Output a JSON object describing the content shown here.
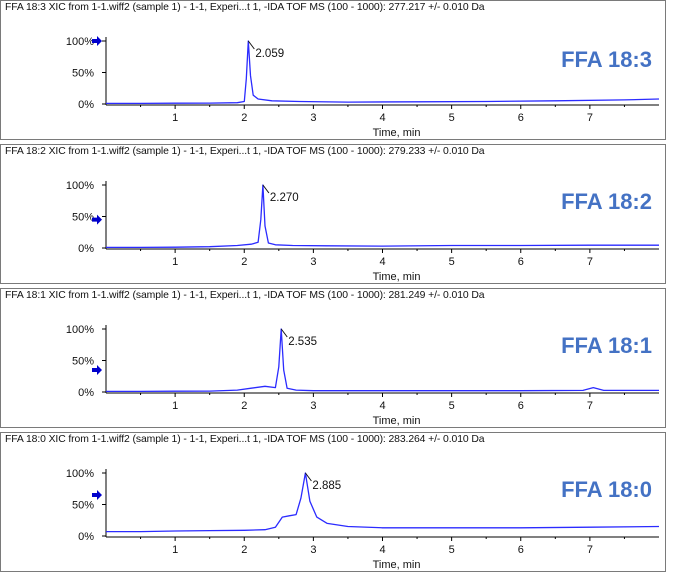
{
  "colors": {
    "trace": "#2b2bff",
    "label": "#4472c4",
    "axis": "#000000",
    "marker": "#0000cc"
  },
  "chart_data": [
    {
      "type": "line",
      "title": "FFA 18:3 XIC from 1-1.wiff2 (sample 1) - 1-1, Experi...t 1, -IDA TOF MS (100 - 1000): 277.217 +/- 0.010 Da",
      "label": "FFA 18:3",
      "xlabel": "Time, min",
      "ylabel": "",
      "xlim": [
        0,
        8.0
      ],
      "ylim": [
        0,
        100
      ],
      "x_ticks": [
        "1",
        "2",
        "3",
        "4",
        "5",
        "6",
        "7"
      ],
      "y_ticks": [
        "0%",
        "50%",
        "100%"
      ],
      "peak_label": "2.059",
      "peak_x": 2.059,
      "peak_y": 100,
      "marker_level": 100,
      "series": [
        {
          "x": [
            0.0,
            0.5,
            1.0,
            1.5,
            1.9,
            2.0,
            2.03,
            2.059,
            2.09,
            2.13,
            2.2,
            2.4,
            2.8,
            3.5,
            4.5,
            5.5,
            6.5,
            7.5,
            8.0
          ],
          "y": [
            1,
            1,
            1.2,
            1.5,
            2,
            4,
            40,
            100,
            45,
            14,
            8,
            5,
            4,
            3,
            3.5,
            4,
            5,
            6.5,
            8
          ]
        }
      ]
    },
    {
      "type": "line",
      "title": "FFA 18:2 XIC from 1-1.wiff2 (sample 1) - 1-1, Experi...t 1, -IDA TOF MS (100 - 1000): 279.233 +/- 0.010 Da",
      "label": "FFA 18:2",
      "xlabel": "Time, min",
      "ylabel": "",
      "xlim": [
        0,
        8.0
      ],
      "ylim": [
        0,
        100
      ],
      "x_ticks": [
        "1",
        "2",
        "3",
        "4",
        "5",
        "6",
        "7"
      ],
      "y_ticks": [
        "0%",
        "50%",
        "100%"
      ],
      "peak_label": "2.270",
      "peak_x": 2.27,
      "peak_y": 100,
      "marker_level": 45,
      "series": [
        {
          "x": [
            0.0,
            0.5,
            1.0,
            1.5,
            1.9,
            2.1,
            2.2,
            2.24,
            2.27,
            2.3,
            2.35,
            2.45,
            2.7,
            3.2,
            4.0,
            5.0,
            6.0,
            7.0,
            8.0
          ],
          "y": [
            1,
            1,
            1.2,
            2,
            4,
            6,
            9,
            45,
            100,
            35,
            8,
            5,
            4,
            3.5,
            3,
            4,
            4,
            4.5,
            4.5
          ]
        }
      ]
    },
    {
      "type": "line",
      "title": "FFA 18:1 XIC from 1-1.wiff2 (sample 1) - 1-1, Experi...t 1, -IDA TOF MS (100 - 1000): 281.249 +/- 0.010 Da",
      "label": "FFA 18:1",
      "xlabel": "Time, min",
      "ylabel": "",
      "xlim": [
        0,
        8.0
      ],
      "ylim": [
        0,
        100
      ],
      "x_ticks": [
        "1",
        "2",
        "3",
        "4",
        "5",
        "6",
        "7"
      ],
      "y_ticks": [
        "0%",
        "50%",
        "100%"
      ],
      "peak_label": "2.535",
      "peak_x": 2.535,
      "peak_y": 100,
      "marker_level": 35,
      "series": [
        {
          "x": [
            0.0,
            0.5,
            1.0,
            1.5,
            1.9,
            2.1,
            2.3,
            2.45,
            2.5,
            2.535,
            2.57,
            2.62,
            2.75,
            3.0,
            4.0,
            5.0,
            6.0,
            6.9,
            7.05,
            7.2,
            8.0
          ],
          "y": [
            1,
            1,
            1.2,
            1.5,
            3,
            6,
            9,
            7,
            40,
            100,
            35,
            6,
            3,
            2,
            2,
            2,
            2,
            2.5,
            7,
            2.5,
            2.5
          ]
        }
      ]
    },
    {
      "type": "line",
      "title": "FFA 18:0 XIC from 1-1.wiff2 (sample 1) - 1-1, Experi...t 1, -IDA TOF MS (100 - 1000): 283.264 +/- 0.010 Da",
      "label": "FFA 18:0",
      "xlabel": "Time, min",
      "ylabel": "",
      "xlim": [
        0,
        8.0
      ],
      "ylim": [
        0,
        100
      ],
      "x_ticks": [
        "1",
        "2",
        "3",
        "4",
        "5",
        "6",
        "7"
      ],
      "y_ticks": [
        "0%",
        "50%",
        "100%"
      ],
      "peak_label": "2.885",
      "peak_x": 2.885,
      "peak_y": 100,
      "marker_level": 65,
      "series": [
        {
          "x": [
            0.0,
            0.5,
            1.0,
            1.5,
            2.0,
            2.3,
            2.45,
            2.55,
            2.65,
            2.75,
            2.82,
            2.885,
            2.95,
            3.05,
            3.2,
            3.5,
            4.0,
            5.0,
            6.0,
            7.0,
            8.0
          ],
          "y": [
            7,
            7,
            8,
            8.5,
            9,
            10,
            14,
            30,
            32,
            34,
            60,
            100,
            55,
            30,
            20,
            15,
            13,
            13,
            13,
            14,
            15
          ]
        }
      ]
    }
  ]
}
